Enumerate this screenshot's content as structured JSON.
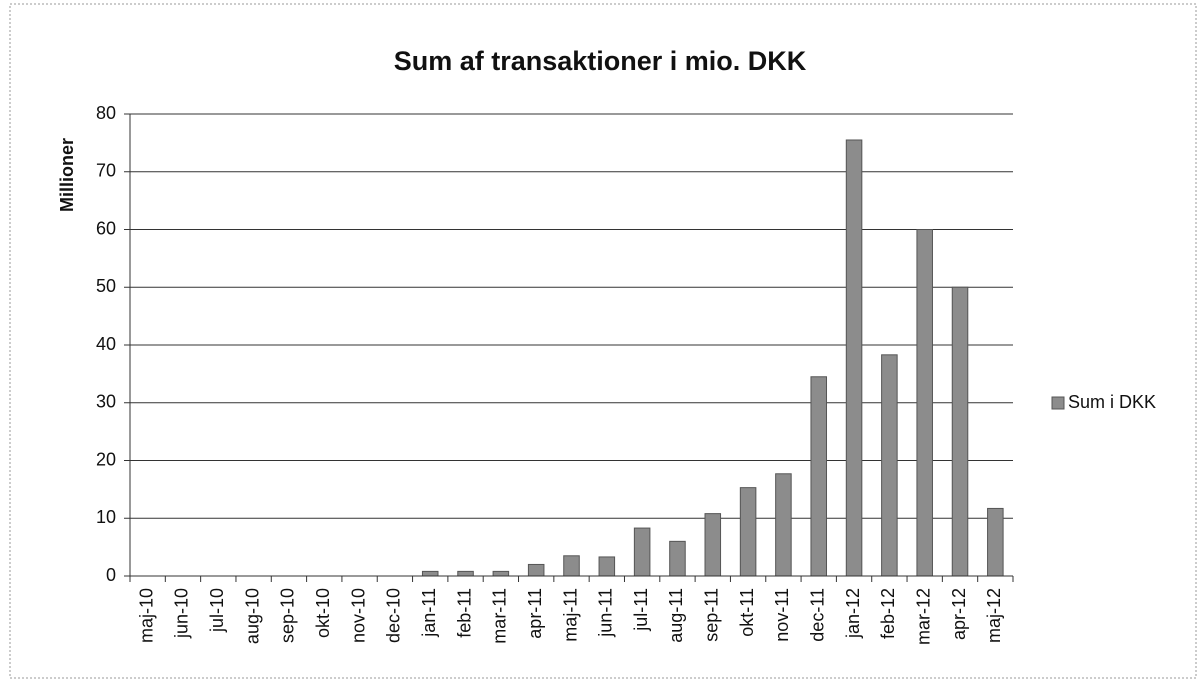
{
  "chart_data": {
    "type": "bar",
    "title": "Sum af transaktioner i mio. DKK",
    "y_label": "Millioner",
    "categories": [
      "maj-10",
      "jun-10",
      "jul-10",
      "aug-10",
      "sep-10",
      "okt-10",
      "nov-10",
      "dec-10",
      "jan-11",
      "feb-11",
      "mar-11",
      "apr-11",
      "maj-11",
      "jun-11",
      "jul-11",
      "aug-11",
      "sep-11",
      "okt-11",
      "nov-11",
      "dec-11",
      "jan-12",
      "feb-12",
      "mar-12",
      "apr-12",
      "maj-12"
    ],
    "series": [
      {
        "name": "Sum i DKK",
        "color": "#8c8c8c",
        "values": [
          0,
          0,
          0,
          0,
          0,
          0,
          0,
          0,
          0.8,
          0.8,
          0.8,
          2,
          3.5,
          3.3,
          8.3,
          6,
          10.8,
          15.3,
          17.7,
          34.5,
          75.5,
          38.3,
          60,
          50,
          11.7
        ]
      }
    ],
    "ylim": [
      0,
      80
    ],
    "yticks": [
      0,
      10,
      20,
      30,
      40,
      50,
      60,
      70,
      80
    ],
    "grid": true,
    "legend": "right"
  }
}
